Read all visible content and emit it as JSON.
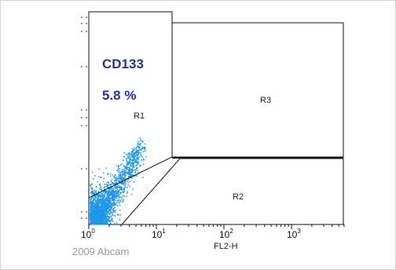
{
  "chart_data": {
    "type": "scatter",
    "title": "",
    "xlabel": "FL2-H",
    "ylabel": "",
    "x_scale": "log",
    "x_ticks": [
      {
        "base": "10",
        "exp": "0",
        "value": 1
      },
      {
        "base": "10",
        "exp": "1",
        "value": 10
      },
      {
        "base": "10",
        "exp": "2",
        "value": 100
      },
      {
        "base": "10",
        "exp": "3",
        "value": 1000
      }
    ],
    "annotations": [
      {
        "text": "CD133",
        "color": "#22339a"
      },
      {
        "text": "5.8 %",
        "color": "#22339a"
      }
    ],
    "gates": [
      {
        "label": "R1"
      },
      {
        "label": "R2"
      },
      {
        "label": "R3"
      }
    ],
    "dot_color": "#1e96e6"
  },
  "watermark": "2009 Abcam"
}
